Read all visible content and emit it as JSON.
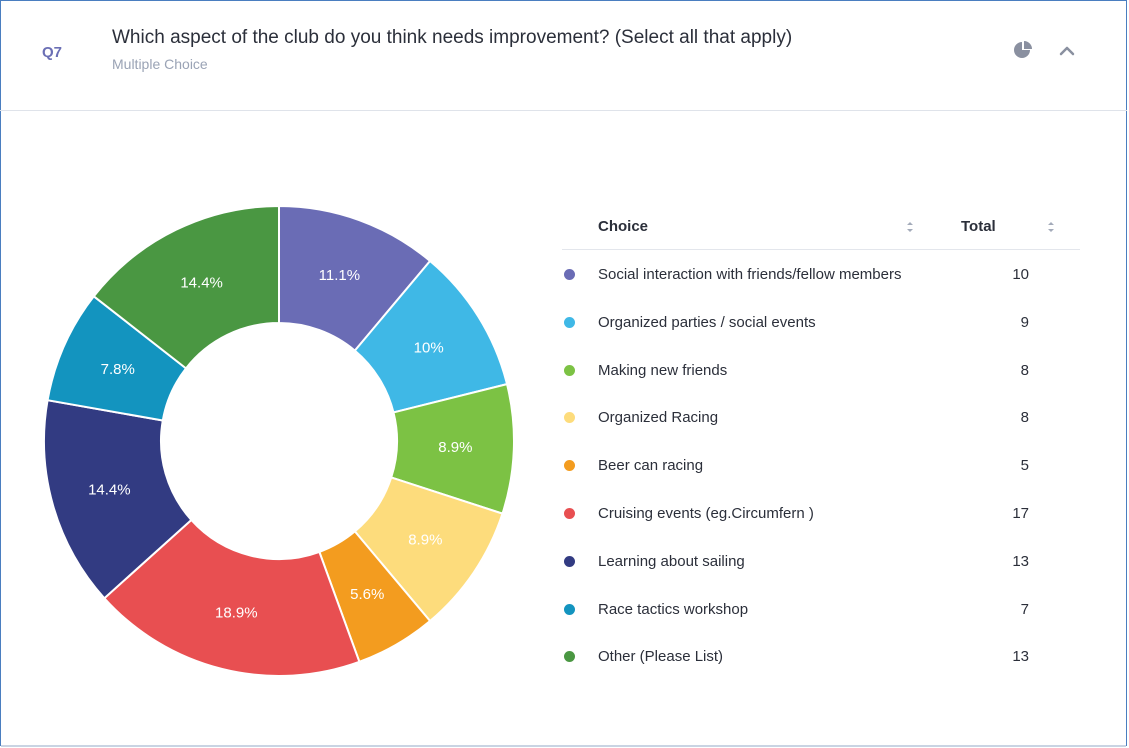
{
  "header": {
    "question_number": "Q7",
    "question_title": "Which aspect of the club do you think needs improvement? (Select all that apply)",
    "question_type": "Multiple Choice",
    "icons": [
      "pie-chart-icon",
      "chevron-up-icon"
    ]
  },
  "table": {
    "col_choice": "Choice",
    "col_total": "Total"
  },
  "chart_data": {
    "type": "pie",
    "variant": "donut",
    "categories": [
      "Social interaction with friends/fellow members",
      "Organized parties / social events",
      "Making new friends",
      "Organized Racing",
      "Beer can racing",
      "Cruising events (eg.Circumfern )",
      "Learning about sailing",
      "Race tactics workshop",
      "Other (Please List)"
    ],
    "values": [
      10,
      9,
      8,
      8,
      5,
      17,
      13,
      7,
      13
    ],
    "percent_labels": [
      "11.1%",
      "10%",
      "8.9%",
      "8.9%",
      "5.6%",
      "18.9%",
      "14.4%",
      "7.8%",
      "14.4%"
    ],
    "colors": [
      "#6a6cb5",
      "#3fb8e6",
      "#7cc244",
      "#fddc7c",
      "#f39c1f",
      "#e84f51",
      "#323b82",
      "#1394bf",
      "#4a9742"
    ],
    "label_colors": [
      "#ffffff",
      "#ffffff",
      "#ffffff",
      "#ffffff",
      "#ffffff",
      "#ffffff",
      "#ffffff",
      "#ffffff",
      "#ffffff"
    ]
  }
}
